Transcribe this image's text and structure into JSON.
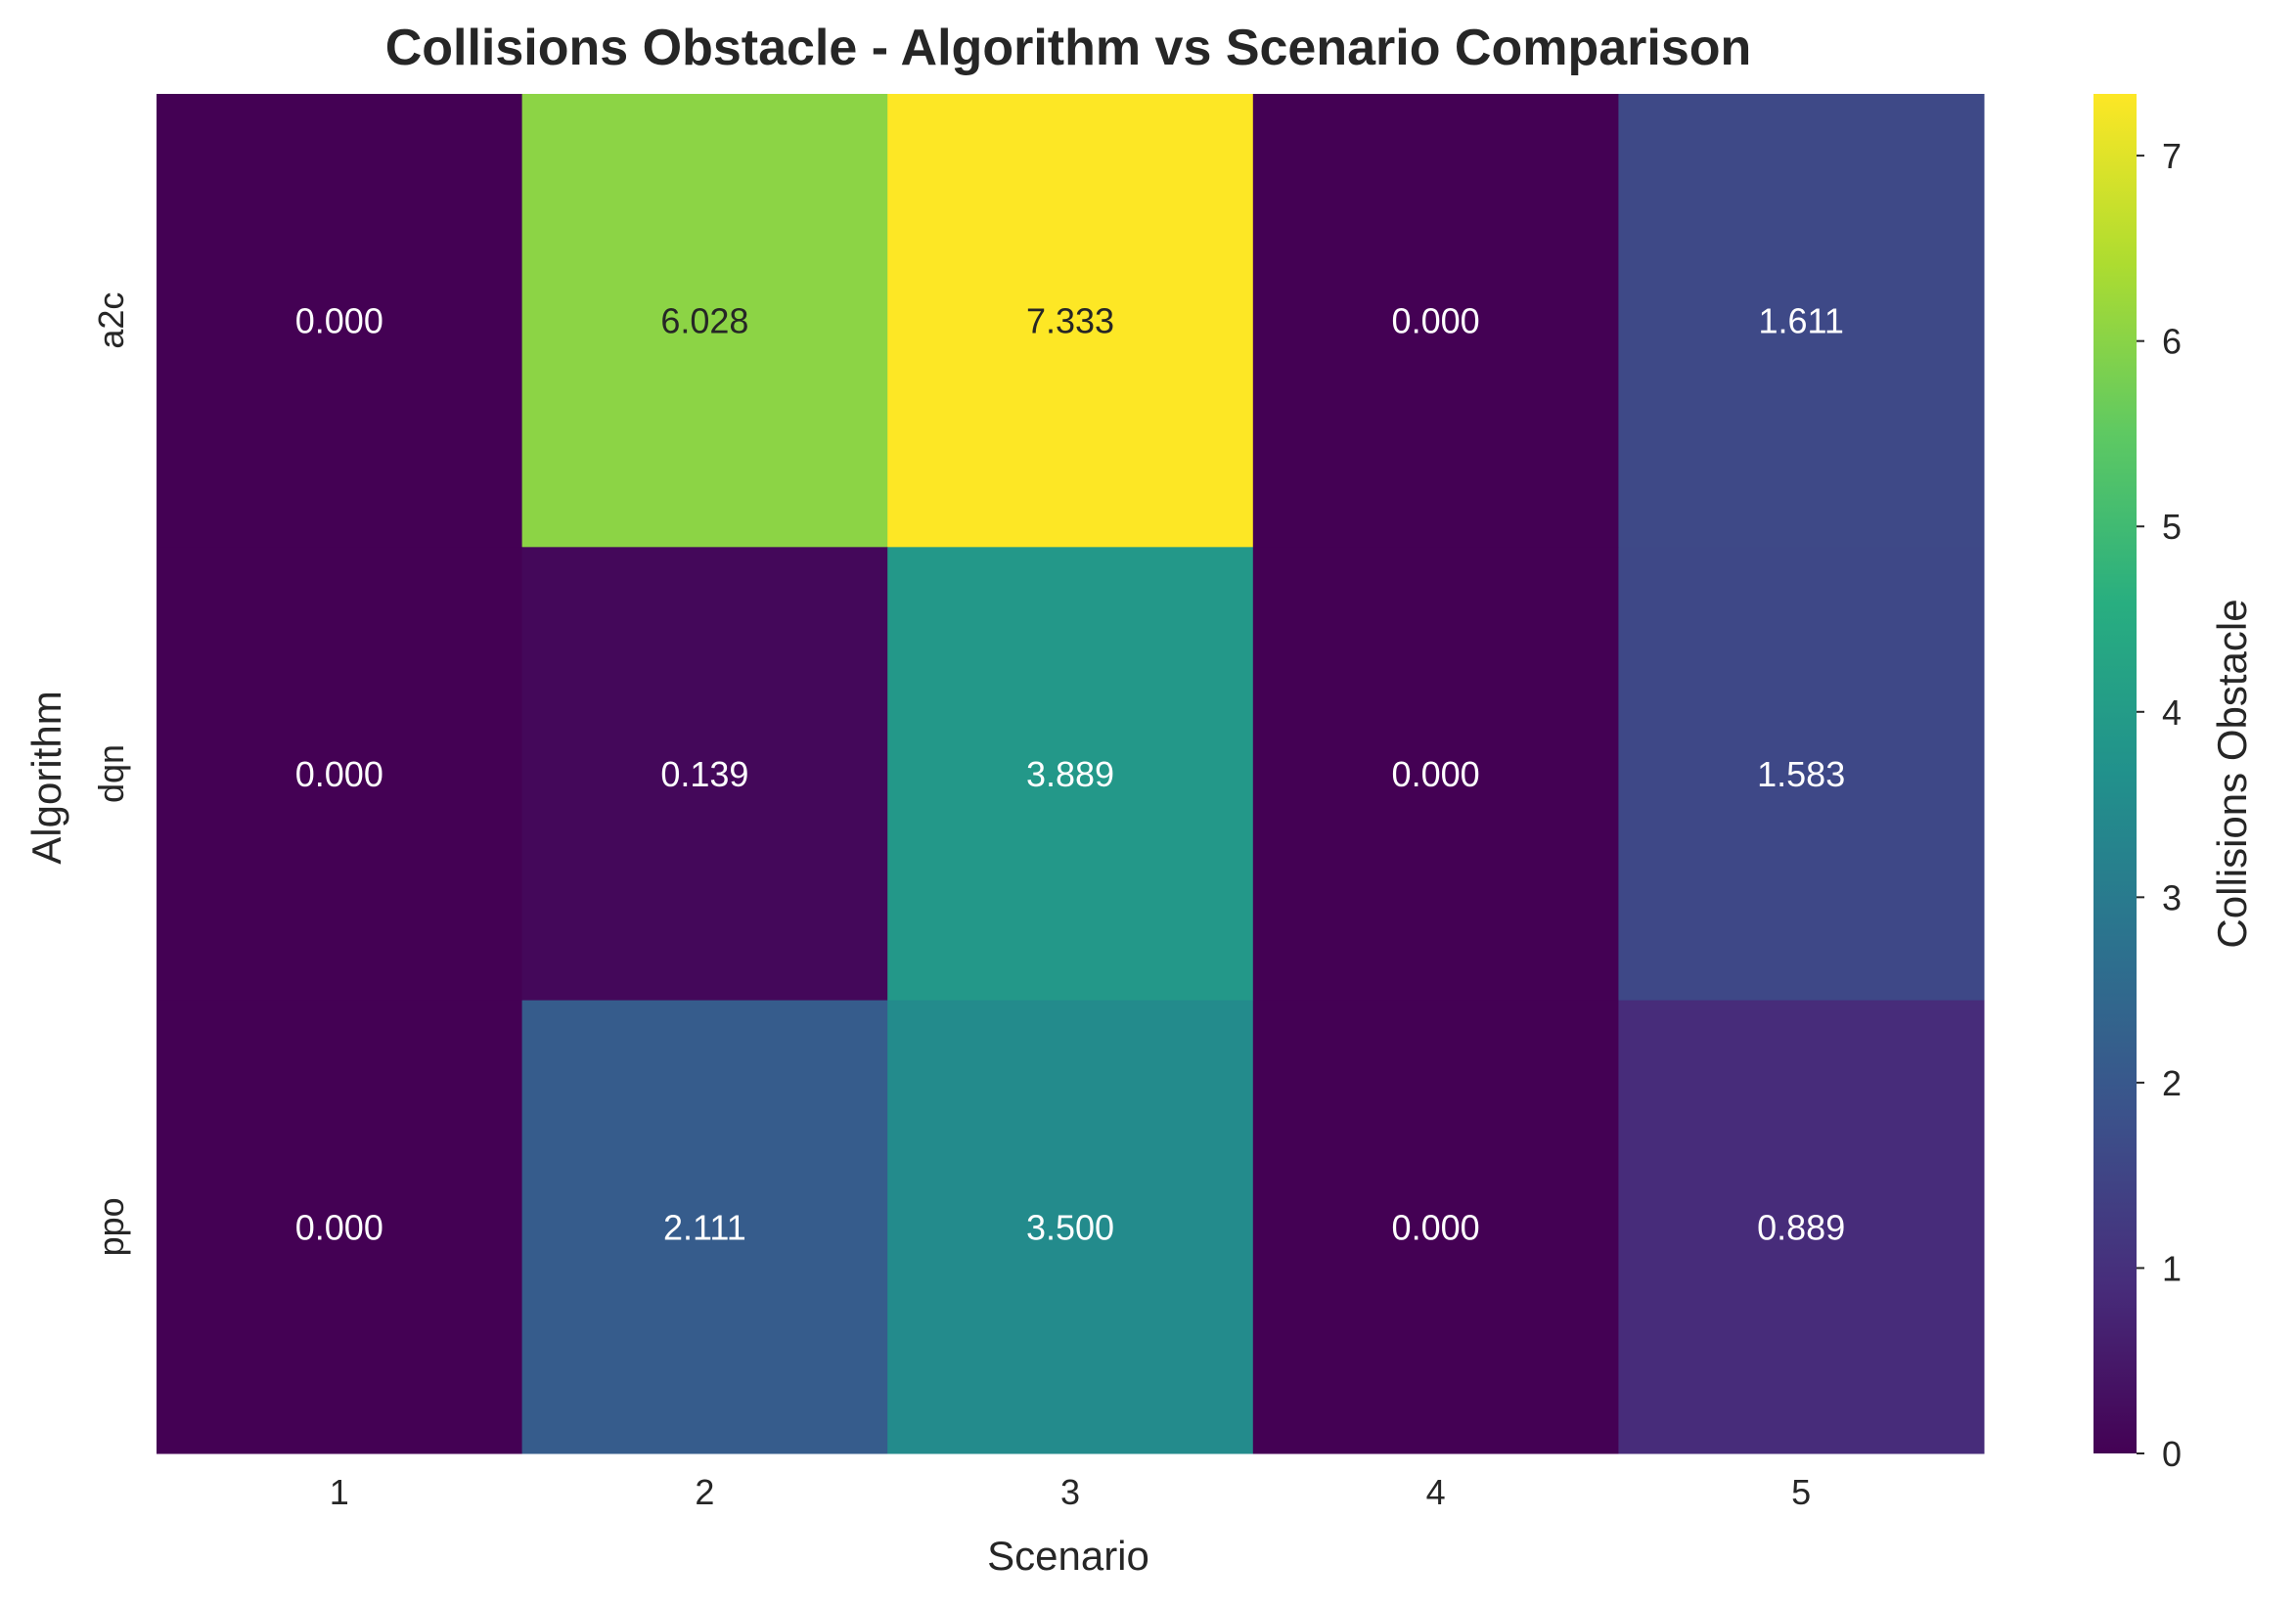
{
  "chart_data": {
    "type": "heatmap",
    "title": "Collisions Obstacle - Algorithm vs Scenario Comparison",
    "xlabel": "Scenario",
    "ylabel": "Algorithm",
    "x_categories": [
      "1",
      "2",
      "3",
      "4",
      "5"
    ],
    "y_categories": [
      "a2c",
      "dqn",
      "ppo"
    ],
    "values": [
      [
        0.0,
        6.028,
        7.333,
        0.0,
        1.611
      ],
      [
        0.0,
        0.139,
        3.889,
        0.0,
        1.583
      ],
      [
        0.0,
        2.111,
        3.5,
        0.0,
        0.889
      ]
    ],
    "value_format_decimals": 3,
    "colormap": "viridis",
    "colorbar": {
      "label": "Collisions Obstacle",
      "range": [
        0,
        7.333
      ],
      "ticks": [
        0,
        1,
        2,
        3,
        4,
        5,
        6,
        7
      ]
    },
    "grid": false
  }
}
